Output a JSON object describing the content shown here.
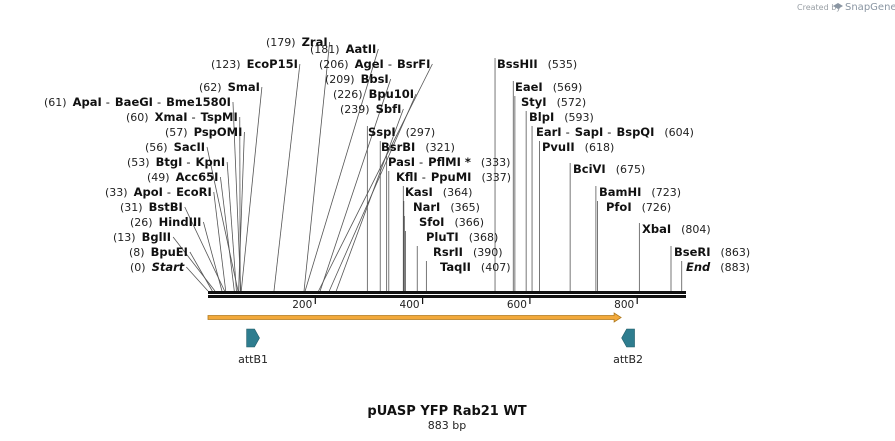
{
  "header": {
    "credit_text": "Created by",
    "brand": "SnapGene"
  },
  "plasmid": {
    "name": "pUASP YFP Rab21 WT",
    "length_label": "883 bp",
    "length_bp": 883
  },
  "colors": {
    "backbone": "#111111",
    "orf": "#f2a93b",
    "orf_border": "#b07a1f",
    "feature": "#2e7d8f",
    "line": "#222222"
  },
  "ruler": {
    "ticks": [
      "200",
      "400",
      "600",
      "800"
    ]
  },
  "sites": [
    {
      "enzymes": [
        "Start"
      ],
      "pos": "(0)",
      "kind": "special"
    },
    {
      "enzymes": [
        "BpuEI"
      ],
      "pos": "(8)"
    },
    {
      "enzymes": [
        "BglII"
      ],
      "pos": "(13)"
    },
    {
      "enzymes": [
        "HindIII"
      ],
      "pos": "(26)"
    },
    {
      "enzymes": [
        "BstBI"
      ],
      "pos": "(31)"
    },
    {
      "enzymes": [
        "ApoI",
        "EcoRI"
      ],
      "pos": "(33)"
    },
    {
      "enzymes": [
        "Acc65I"
      ],
      "pos": "(49)"
    },
    {
      "enzymes": [
        "BtgI",
        "KpnI"
      ],
      "pos": "(53)"
    },
    {
      "enzymes": [
        "SacII"
      ],
      "pos": "(56)"
    },
    {
      "enzymes": [
        "PspOMI"
      ],
      "pos": "(57)"
    },
    {
      "enzymes": [
        "XmaI",
        "TspMI"
      ],
      "pos": "(60)"
    },
    {
      "enzymes": [
        "ApaI",
        "BaeGI",
        "Bme1580I"
      ],
      "pos": "(61)"
    },
    {
      "enzymes": [
        "SmaI"
      ],
      "pos": "(62)"
    },
    {
      "enzymes": [
        "EcoP15I"
      ],
      "pos": "(123)"
    },
    {
      "enzymes": [
        "ZraI"
      ],
      "pos": "(179)"
    },
    {
      "enzymes": [
        "AatII"
      ],
      "pos": "(181)"
    },
    {
      "enzymes": [
        "AgeI",
        "BsrFI"
      ],
      "pos": "(206)"
    },
    {
      "enzymes": [
        "BbsI"
      ],
      "pos": "(209)"
    },
    {
      "enzymes": [
        "Bpu10I"
      ],
      "pos": "(226)"
    },
    {
      "enzymes": [
        "SbfI"
      ],
      "pos": "(239)"
    },
    {
      "enzymes": [
        "SspI"
      ],
      "pos": "(297)"
    },
    {
      "enzymes": [
        "BsrBI"
      ],
      "pos": "(321)"
    },
    {
      "enzymes": [
        "PasI",
        "PflMI *"
      ],
      "pos": "(333)"
    },
    {
      "enzymes": [
        "KflI",
        "PpuMI"
      ],
      "pos": "(337)"
    },
    {
      "enzymes": [
        "KasI"
      ],
      "pos": "(364)"
    },
    {
      "enzymes": [
        "NarI"
      ],
      "pos": "(365)"
    },
    {
      "enzymes": [
        "SfoI"
      ],
      "pos": "(366)"
    },
    {
      "enzymes": [
        "PluTI"
      ],
      "pos": "(368)"
    },
    {
      "enzymes": [
        "RsrII"
      ],
      "pos": "(390)"
    },
    {
      "enzymes": [
        "TaqII"
      ],
      "pos": "(407)"
    },
    {
      "enzymes": [
        "BssHII"
      ],
      "pos": "(535)"
    },
    {
      "enzymes": [
        "EaeI"
      ],
      "pos": "(569)"
    },
    {
      "enzymes": [
        "StyI"
      ],
      "pos": "(572)"
    },
    {
      "enzymes": [
        "BlpI"
      ],
      "pos": "(593)"
    },
    {
      "enzymes": [
        "EarI",
        "SapI",
        "BspQI"
      ],
      "pos": "(604)"
    },
    {
      "enzymes": [
        "PvuII"
      ],
      "pos": "(618)"
    },
    {
      "enzymes": [
        "BciVI"
      ],
      "pos": "(675)"
    },
    {
      "enzymes": [
        "BamHI"
      ],
      "pos": "(723)"
    },
    {
      "enzymes": [
        "PfoI"
      ],
      "pos": "(726)"
    },
    {
      "enzymes": [
        "XbaI"
      ],
      "pos": "(804)"
    },
    {
      "enzymes": [
        "BseRI"
      ],
      "pos": "(863)"
    },
    {
      "enzymes": [
        "End"
      ],
      "pos": "(883)",
      "kind": "special"
    }
  ],
  "features": [
    {
      "name": "attB1",
      "start_bp": 72,
      "end_bp": 96,
      "direction": "forward",
      "icon": "forward-arrow-icon"
    },
    {
      "name": "attB2",
      "start_bp": 771,
      "end_bp": 795,
      "direction": "reverse",
      "icon": "reverse-arrow-icon"
    }
  ],
  "orf": {
    "start_bp": 0,
    "end_bp": 770,
    "direction": "forward"
  }
}
